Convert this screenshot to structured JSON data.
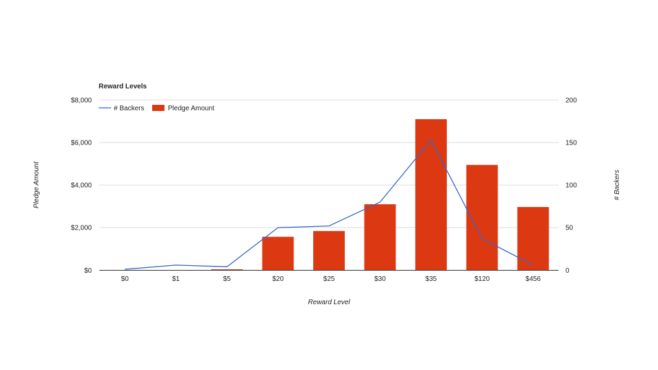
{
  "chart_data": {
    "type": "bar",
    "title": "Reward Levels",
    "xlabel": "Reward Level",
    "ylabel": "Pledge Amount",
    "y2label": "# Backers",
    "categories": [
      "$0",
      "$1",
      "$5",
      "$20",
      "$25",
      "$30",
      "$35",
      "$120",
      "$456"
    ],
    "ylim": [
      0,
      8000
    ],
    "y_ticks": [
      0,
      2000,
      4000,
      6000,
      8000
    ],
    "y_tick_labels": [
      "$0",
      "$2,000",
      "$4,000",
      "$6,000",
      "$8,000"
    ],
    "y2lim": [
      0,
      200
    ],
    "y2_ticks": [
      0,
      50,
      100,
      150,
      200
    ],
    "y2_tick_labels": [
      "0",
      "50",
      "100",
      "150",
      "200"
    ],
    "grid": true,
    "legend_position": "top-left",
    "series": [
      {
        "name": "# Backers",
        "type": "line",
        "axis": "right",
        "color": "#3366cc",
        "values": [
          1,
          6,
          4,
          50,
          52,
          80,
          153,
          37,
          6
        ]
      },
      {
        "name": "Pledge Amount",
        "type": "bar",
        "axis": "left",
        "color": "#dc3912",
        "values": [
          0,
          0,
          40,
          1570,
          1840,
          3100,
          7100,
          4950,
          2970
        ]
      }
    ]
  }
}
